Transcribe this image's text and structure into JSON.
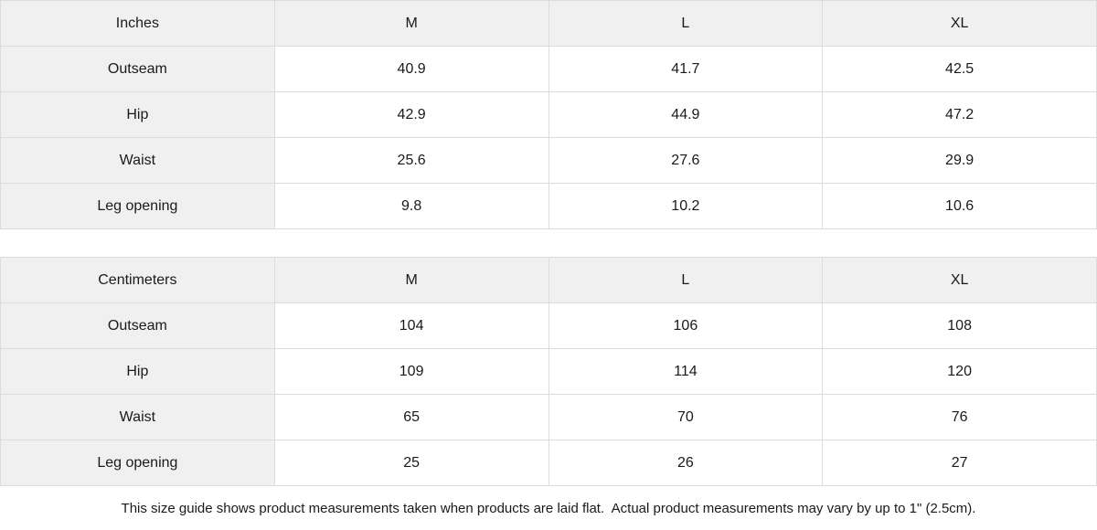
{
  "tables": [
    {
      "unit_label": "Inches",
      "size_headers": [
        "M",
        "L",
        "XL"
      ],
      "rows": [
        {
          "label": "Outseam",
          "values": [
            "40.9",
            "41.7",
            "42.5"
          ]
        },
        {
          "label": "Hip",
          "values": [
            "42.9",
            "44.9",
            "47.2"
          ]
        },
        {
          "label": "Waist",
          "values": [
            "25.6",
            "27.6",
            "29.9"
          ]
        },
        {
          "label": "Leg opening",
          "values": [
            "9.8",
            "10.2",
            "10.6"
          ]
        }
      ]
    },
    {
      "unit_label": "Centimeters",
      "size_headers": [
        "M",
        "L",
        "XL"
      ],
      "rows": [
        {
          "label": "Outseam",
          "values": [
            "104",
            "106",
            "108"
          ]
        },
        {
          "label": "Hip",
          "values": [
            "109",
            "114",
            "120"
          ]
        },
        {
          "label": "Waist",
          "values": [
            "65",
            "70",
            "76"
          ]
        },
        {
          "label": "Leg opening",
          "values": [
            "25",
            "26",
            "27"
          ]
        }
      ]
    }
  ],
  "footer": {
    "note": "This size guide shows product measurements taken when products are laid flat.  Actual product measurements may vary by up to 1\" (2.5cm)."
  },
  "colors": {
    "header_bg": "#f0f0f0",
    "cell_bg": "#ffffff",
    "border": "#dcdcdc",
    "text": "#1a1a1a"
  }
}
